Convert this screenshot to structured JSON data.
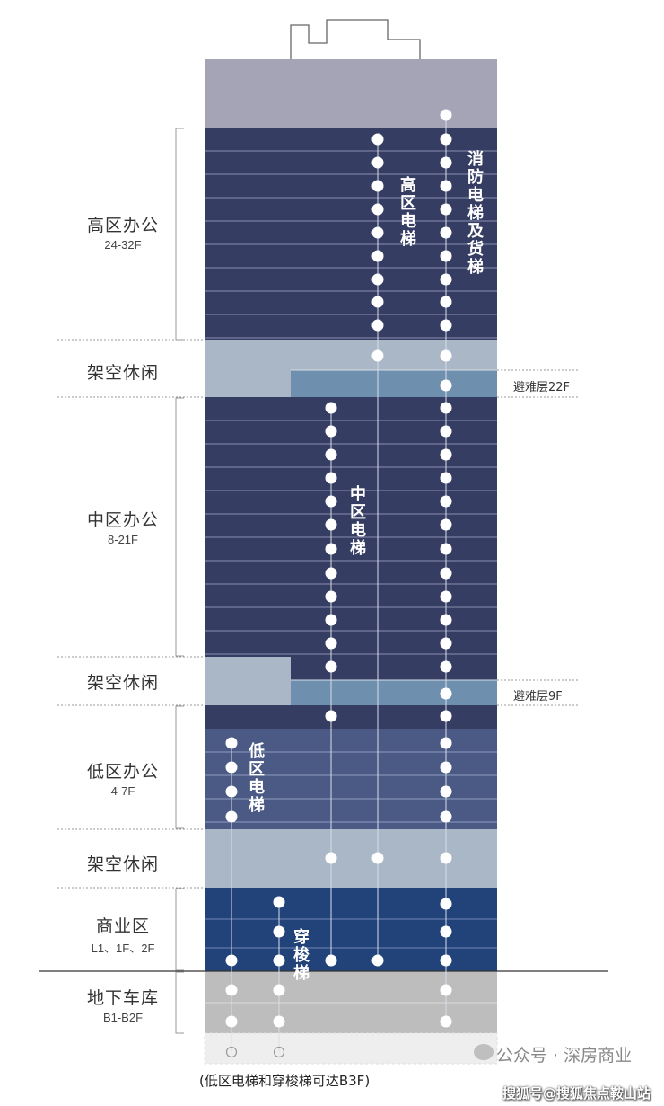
{
  "zones": [
    {
      "key": "high",
      "name": "高区办公",
      "floors": "24-32F"
    },
    {
      "key": "sky1",
      "name": "架空休闲",
      "floors": ""
    },
    {
      "key": "mid",
      "name": "中区办公",
      "floors": "8-21F"
    },
    {
      "key": "sky2",
      "name": "架空休闲",
      "floors": ""
    },
    {
      "key": "low",
      "name": "低区办公",
      "floors": "4-7F"
    },
    {
      "key": "sky3",
      "name": "架空休闲",
      "floors": ""
    },
    {
      "key": "retail",
      "name": "商业区",
      "floors": "L1、1F、2F"
    },
    {
      "key": "parking",
      "name": "地下车库",
      "floors": "B1-B2F"
    }
  ],
  "refuge_floors": [
    "避难层22F",
    "避难层9F"
  ],
  "elevators": {
    "high": "高区电梯",
    "mid": "中区电梯",
    "low": "低区电梯",
    "shuttle": "穿梭梯",
    "fire_freight": "消防电梯及货梯"
  },
  "caption": "(低区电梯和穿梭梯可达B3F)",
  "watermark": "公众号 · 深房商业",
  "watermark2": "搜狐号@搜狐焦点鞍山站",
  "colors": {
    "high_office": "#363d63",
    "mid_office": "#363d63",
    "low_office": "#4b5a85",
    "retail": "#22437a",
    "sky_lobby": "#a9b7c6",
    "refuge": "#6f8fae",
    "roof": "#a5a4b7",
    "parking": "#bdbdbd",
    "basement3": "#eeeeee"
  }
}
